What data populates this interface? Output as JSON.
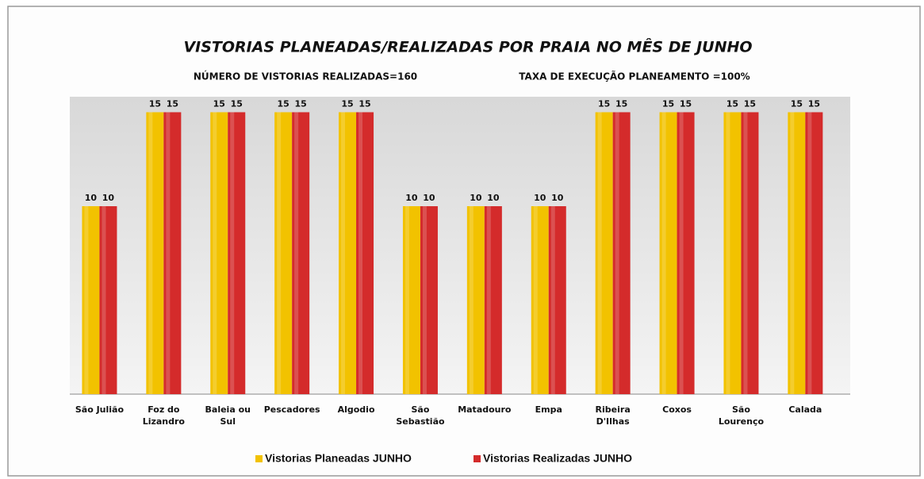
{
  "chart_data": {
    "type": "bar",
    "title": "VISTORIAS PLANEADAS/REALIZADAS POR PRAIA NO MÊS DE JUNHO",
    "subtitles": [
      "NÚMERO DE VISTORIAS REALIZADAS=160",
      "TAXA DE EXECUÇÃO PLANEAMENTO =100%"
    ],
    "categories": [
      "São Julião",
      "Foz do Lizandro",
      "Baleia ou Sul",
      "Pescadores",
      "Algodio",
      "São Sebastião",
      "Matadouro",
      "Empa",
      "Ribeira D'Ilhas",
      "Coxos",
      "São Lourenço",
      "Calada"
    ],
    "series": [
      {
        "name": "Vistorias Planeadas JUNHO",
        "color": "#f2c200",
        "values": [
          10,
          15,
          15,
          15,
          15,
          10,
          10,
          10,
          15,
          15,
          15,
          15
        ]
      },
      {
        "name": "Vistorias Realizadas JUNHO",
        "color": "#d42b2b",
        "values": [
          10,
          15,
          15,
          15,
          15,
          10,
          10,
          10,
          15,
          15,
          15,
          15
        ]
      }
    ]
  }
}
